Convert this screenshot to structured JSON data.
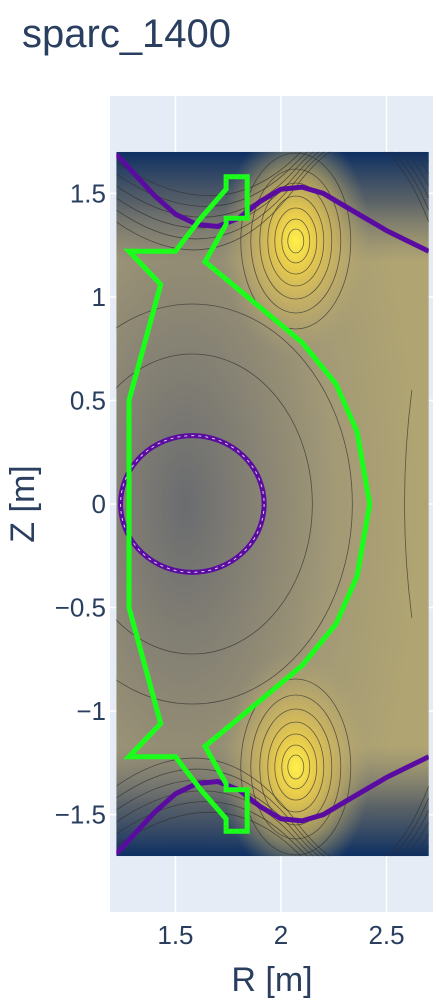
{
  "chart_data": {
    "type": "heatmap",
    "title": "sparc_1400",
    "xlabel": "R [m]",
    "ylabel": "Z [m]",
    "xlim": [
      1.19,
      2.72
    ],
    "ylim": [
      -1.97,
      1.97
    ],
    "data_extent": {
      "r": [
        1.22,
        2.7
      ],
      "z": [
        -1.7,
        1.7
      ]
    },
    "grid": true,
    "colors": {
      "plot_bg": "#e5ecf6",
      "wall": "#1aff1a",
      "separatrix": "#5a0ca0"
    },
    "x_ticks": [
      {
        "value": 1.5,
        "label": "1.5"
      },
      {
        "value": 2.0,
        "label": "2"
      },
      {
        "value": 2.5,
        "label": "2.5"
      }
    ],
    "y_ticks": [
      {
        "value": 1.5,
        "label": "1.5"
      },
      {
        "value": 1.0,
        "label": "1"
      },
      {
        "value": 0.5,
        "label": "0.5"
      },
      {
        "value": 0.0,
        "label": "0"
      },
      {
        "value": -0.5,
        "label": "−0.5"
      },
      {
        "value": -1.0,
        "label": "−1"
      },
      {
        "value": -1.5,
        "label": "−1.5"
      }
    ],
    "field": {
      "hot_spots": [
        {
          "r": 2.07,
          "z": 1.27,
          "level": 1.0
        },
        {
          "r": 2.07,
          "z": -1.27,
          "level": 1.0
        }
      ],
      "cold_center": {
        "r": 1.58,
        "z": 0.0
      }
    },
    "wall_outline": [
      [
        1.74,
        1.58
      ],
      [
        1.84,
        1.58
      ],
      [
        1.84,
        1.38
      ],
      [
        1.74,
        1.38
      ],
      [
        1.74,
        1.35
      ],
      [
        1.64,
        1.17
      ],
      [
        1.9,
        0.95
      ],
      [
        2.1,
        0.78
      ],
      [
        2.26,
        0.58
      ],
      [
        2.36,
        0.35
      ],
      [
        2.42,
        0.0
      ],
      [
        2.36,
        -0.35
      ],
      [
        2.26,
        -0.58
      ],
      [
        2.1,
        -0.78
      ],
      [
        1.9,
        -0.95
      ],
      [
        1.64,
        -1.17
      ],
      [
        1.74,
        -1.35
      ],
      [
        1.74,
        -1.38
      ],
      [
        1.84,
        -1.38
      ],
      [
        1.84,
        -1.58
      ],
      [
        1.74,
        -1.58
      ],
      [
        1.74,
        -1.52
      ],
      [
        1.62,
        -1.38
      ],
      [
        1.5,
        -1.22
      ],
      [
        1.28,
        -1.22
      ],
      [
        1.43,
        -1.06
      ],
      [
        1.28,
        -0.5
      ],
      [
        1.28,
        0.5
      ],
      [
        1.43,
        1.06
      ],
      [
        1.28,
        1.22
      ],
      [
        1.5,
        1.22
      ],
      [
        1.62,
        1.38
      ],
      [
        1.74,
        1.52
      ],
      [
        1.74,
        1.58
      ]
    ],
    "separatrix_upper": [
      [
        1.22,
        1.69
      ],
      [
        1.3,
        1.6
      ],
      [
        1.4,
        1.49
      ],
      [
        1.5,
        1.4
      ],
      [
        1.6,
        1.35
      ],
      [
        1.7,
        1.34
      ],
      [
        1.8,
        1.38
      ],
      [
        1.9,
        1.46
      ],
      [
        2.0,
        1.52
      ],
      [
        2.1,
        1.53
      ],
      [
        2.2,
        1.5
      ],
      [
        2.3,
        1.44
      ],
      [
        2.4,
        1.38
      ],
      [
        2.5,
        1.32
      ],
      [
        2.6,
        1.27
      ],
      [
        2.7,
        1.22
      ]
    ],
    "separatrix_lower": [
      [
        1.22,
        -1.69
      ],
      [
        1.3,
        -1.6
      ],
      [
        1.4,
        -1.49
      ],
      [
        1.5,
        -1.4
      ],
      [
        1.6,
        -1.35
      ],
      [
        1.7,
        -1.34
      ],
      [
        1.8,
        -1.38
      ],
      [
        1.9,
        -1.46
      ],
      [
        2.0,
        -1.52
      ],
      [
        2.1,
        -1.53
      ],
      [
        2.2,
        -1.5
      ],
      [
        2.3,
        -1.44
      ],
      [
        2.4,
        -1.38
      ],
      [
        2.5,
        -1.32
      ],
      [
        2.6,
        -1.27
      ],
      [
        2.7,
        -1.22
      ]
    ],
    "inner_ring": {
      "r": 1.58,
      "z": 0.0,
      "radius_r": 0.34,
      "radius_z": 0.33
    }
  }
}
